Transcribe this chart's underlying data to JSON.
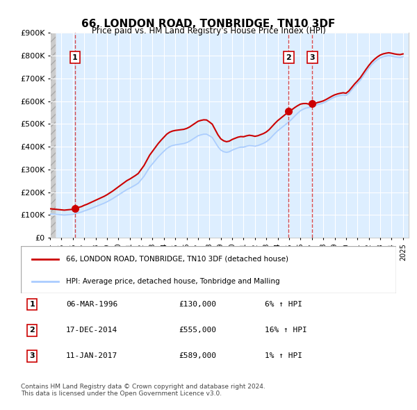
{
  "title": "66, LONDON ROAD, TONBRIDGE, TN10 3DF",
  "subtitle": "Price paid vs. HM Land Registry's House Price Index (HPI)",
  "ylabel_ticks": [
    "£0",
    "£100K",
    "£200K",
    "£300K",
    "£400K",
    "£500K",
    "£600K",
    "£700K",
    "£800K",
    "£900K"
  ],
  "ytick_values": [
    0,
    100000,
    200000,
    300000,
    400000,
    500000,
    600000,
    700000,
    800000,
    900000
  ],
  "ylim": [
    0,
    900000
  ],
  "xlim_start": 1994.0,
  "xlim_end": 2025.5,
  "background_color": "#ddeeff",
  "plot_bg_color": "#ddeeff",
  "grid_color": "#ffffff",
  "hatch_color": "#cccccc",
  "sale_color": "#cc0000",
  "hpi_color": "#aaccff",
  "dashed_line_color": "#cc0000",
  "legend_label_sale": "66, LONDON ROAD, TONBRIDGE, TN10 3DF (detached house)",
  "legend_label_hpi": "HPI: Average price, detached house, Tonbridge and Malling",
  "transactions": [
    {
      "num": 1,
      "date": "06-MAR-1996",
      "price": 130000,
      "pct": "6%",
      "direction": "↑",
      "x_year": 1996.18
    },
    {
      "num": 2,
      "date": "17-DEC-2014",
      "price": 555000,
      "pct": "16%",
      "direction": "↑",
      "x_year": 2014.96
    },
    {
      "num": 3,
      "date": "11-JAN-2017",
      "price": 589000,
      "pct": "1%",
      "direction": "↑",
      "x_year": 2017.04
    }
  ],
  "footer": "Contains HM Land Registry data © Crown copyright and database right 2024.\nThis data is licensed under the Open Government Licence v3.0.",
  "hpi_data": {
    "years": [
      1994.0,
      1994.25,
      1994.5,
      1994.75,
      1995.0,
      1995.25,
      1995.5,
      1995.75,
      1996.0,
      1996.25,
      1996.5,
      1996.75,
      1997.0,
      1997.25,
      1997.5,
      1997.75,
      1998.0,
      1998.25,
      1998.5,
      1998.75,
      1999.0,
      1999.25,
      1999.5,
      1999.75,
      2000.0,
      2000.25,
      2000.5,
      2000.75,
      2001.0,
      2001.25,
      2001.5,
      2001.75,
      2002.0,
      2002.25,
      2002.5,
      2002.75,
      2003.0,
      2003.25,
      2003.5,
      2003.75,
      2004.0,
      2004.25,
      2004.5,
      2004.75,
      2005.0,
      2005.25,
      2005.5,
      2005.75,
      2006.0,
      2006.25,
      2006.5,
      2006.75,
      2007.0,
      2007.25,
      2007.5,
      2007.75,
      2008.0,
      2008.25,
      2008.5,
      2008.75,
      2009.0,
      2009.25,
      2009.5,
      2009.75,
      2010.0,
      2010.25,
      2010.5,
      2010.75,
      2011.0,
      2011.25,
      2011.5,
      2011.75,
      2012.0,
      2012.25,
      2012.5,
      2012.75,
      2013.0,
      2013.25,
      2013.5,
      2013.75,
      2014.0,
      2014.25,
      2014.5,
      2014.75,
      2015.0,
      2015.25,
      2015.5,
      2015.75,
      2016.0,
      2016.25,
      2016.5,
      2016.75,
      2017.0,
      2017.25,
      2017.5,
      2017.75,
      2018.0,
      2018.25,
      2018.5,
      2018.75,
      2019.0,
      2019.25,
      2019.5,
      2019.75,
      2020.0,
      2020.25,
      2020.5,
      2020.75,
      2021.0,
      2021.25,
      2021.5,
      2021.75,
      2022.0,
      2022.25,
      2022.5,
      2022.75,
      2023.0,
      2023.25,
      2023.5,
      2023.75,
      2024.0,
      2024.25,
      2024.5,
      2024.75,
      2025.0
    ],
    "values": [
      105000,
      104000,
      103000,
      102000,
      101000,
      100000,
      101000,
      102000,
      103000,
      107000,
      110000,
      113000,
      118000,
      122000,
      127000,
      132000,
      137000,
      142000,
      147000,
      152000,
      158000,
      165000,
      172000,
      180000,
      188000,
      196000,
      204000,
      212000,
      218000,
      225000,
      232000,
      240000,
      255000,
      270000,
      290000,
      310000,
      325000,
      340000,
      355000,
      368000,
      380000,
      392000,
      400000,
      405000,
      408000,
      410000,
      412000,
      414000,
      418000,
      424000,
      432000,
      440000,
      448000,
      452000,
      455000,
      455000,
      448000,
      440000,
      420000,
      400000,
      385000,
      378000,
      375000,
      378000,
      385000,
      390000,
      395000,
      398000,
      398000,
      402000,
      405000,
      404000,
      402000,
      405000,
      410000,
      415000,
      422000,
      432000,
      445000,
      458000,
      470000,
      480000,
      490000,
      500000,
      510000,
      522000,
      535000,
      547000,
      558000,
      565000,
      570000,
      572000,
      575000,
      580000,
      585000,
      588000,
      592000,
      598000,
      605000,
      612000,
      618000,
      622000,
      625000,
      627000,
      625000,
      635000,
      650000,
      665000,
      678000,
      692000,
      710000,
      728000,
      745000,
      760000,
      772000,
      782000,
      790000,
      795000,
      798000,
      800000,
      798000,
      795000,
      793000,
      792000,
      795000
    ]
  }
}
